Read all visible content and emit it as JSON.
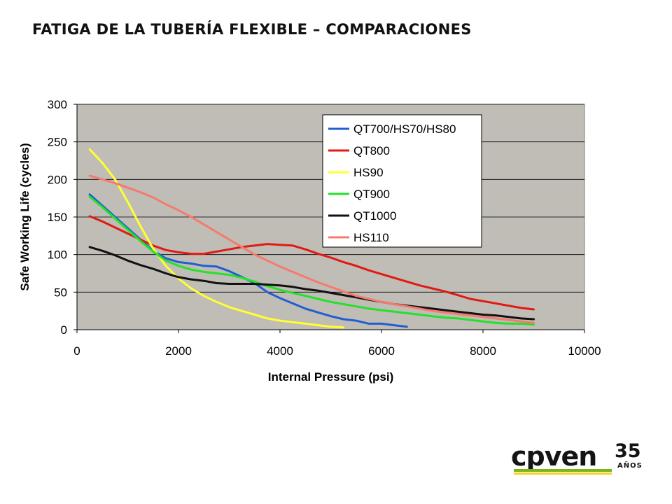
{
  "slide": {
    "title": "FATIGA DE LA TUBERÍA FLEXIBLE – COMPARACIONES"
  },
  "logo": {
    "wordmark": "cpven",
    "number": "35",
    "suffix": "AÑOS",
    "colors": {
      "green": "#7ab51d",
      "yellow": "#f2d21b",
      "dark": "#141414"
    }
  },
  "chart_data": {
    "type": "line",
    "title": "",
    "xlabel": "Internal Pressure (psi)",
    "ylabel": "Safe Working Life (cycles)",
    "xlim": [
      0,
      10000
    ],
    "ylim": [
      0,
      300
    ],
    "xticks": [
      0,
      2000,
      4000,
      6000,
      8000,
      10000
    ],
    "yticks": [
      0,
      50,
      100,
      150,
      200,
      250,
      300
    ],
    "grid": "horizontal",
    "plot_background": "#c0bcb6",
    "legend_position": "top-right",
    "series": [
      {
        "name": "QT700/HS70/HS80",
        "color": "#1f5fd1",
        "points": [
          [
            250,
            180
          ],
          [
            500,
            165
          ],
          [
            750,
            150
          ],
          [
            1000,
            135
          ],
          [
            1250,
            120
          ],
          [
            1500,
            105
          ],
          [
            1750,
            95
          ],
          [
            2000,
            90
          ],
          [
            2250,
            88
          ],
          [
            2500,
            85
          ],
          [
            2750,
            84
          ],
          [
            3000,
            78
          ],
          [
            3250,
            70
          ],
          [
            3500,
            62
          ],
          [
            3750,
            50
          ],
          [
            4000,
            42
          ],
          [
            4250,
            35
          ],
          [
            4500,
            28
          ],
          [
            4750,
            23
          ],
          [
            5000,
            18
          ],
          [
            5250,
            14
          ],
          [
            5500,
            12
          ],
          [
            5750,
            8
          ],
          [
            6000,
            8
          ],
          [
            6250,
            6
          ],
          [
            6500,
            4
          ]
        ]
      },
      {
        "name": "QT800",
        "color": "#e01a12",
        "points": [
          [
            250,
            151
          ],
          [
            500,
            144
          ],
          [
            750,
            136
          ],
          [
            1000,
            128
          ],
          [
            1250,
            120
          ],
          [
            1500,
            112
          ],
          [
            1750,
            106
          ],
          [
            2000,
            103
          ],
          [
            2250,
            101
          ],
          [
            2500,
            101
          ],
          [
            2750,
            104
          ],
          [
            3000,
            107
          ],
          [
            3250,
            110
          ],
          [
            3500,
            112
          ],
          [
            3750,
            114
          ],
          [
            4000,
            113
          ],
          [
            4250,
            112
          ],
          [
            4500,
            107
          ],
          [
            4750,
            101
          ],
          [
            5000,
            96
          ],
          [
            5250,
            90
          ],
          [
            5500,
            85
          ],
          [
            5750,
            79
          ],
          [
            6000,
            74
          ],
          [
            6250,
            69
          ],
          [
            6500,
            64
          ],
          [
            6750,
            59
          ],
          [
            7000,
            55
          ],
          [
            7250,
            51
          ],
          [
            7500,
            46
          ],
          [
            7750,
            41
          ],
          [
            8000,
            38
          ],
          [
            8250,
            35
          ],
          [
            8500,
            32
          ],
          [
            8750,
            29
          ],
          [
            9000,
            27
          ]
        ]
      },
      {
        "name": "HS90",
        "color": "#ffff33",
        "points": [
          [
            250,
            240
          ],
          [
            500,
            222
          ],
          [
            750,
            200
          ],
          [
            1000,
            170
          ],
          [
            1250,
            138
          ],
          [
            1500,
            108
          ],
          [
            1750,
            85
          ],
          [
            2000,
            68
          ],
          [
            2250,
            55
          ],
          [
            2500,
            45
          ],
          [
            2750,
            37
          ],
          [
            3000,
            30
          ],
          [
            3250,
            25
          ],
          [
            3500,
            20
          ],
          [
            3750,
            15
          ],
          [
            4000,
            12
          ],
          [
            4250,
            10
          ],
          [
            4500,
            8
          ],
          [
            4750,
            6
          ],
          [
            5000,
            4
          ],
          [
            5250,
            3
          ]
        ]
      },
      {
        "name": "QT900",
        "color": "#22e22a",
        "points": [
          [
            250,
            177
          ],
          [
            500,
            163
          ],
          [
            750,
            148
          ],
          [
            1000,
            133
          ],
          [
            1250,
            118
          ],
          [
            1500,
            104
          ],
          [
            1750,
            92
          ],
          [
            2000,
            85
          ],
          [
            2250,
            80
          ],
          [
            2500,
            77
          ],
          [
            2750,
            75
          ],
          [
            3000,
            73
          ],
          [
            3250,
            69
          ],
          [
            3500,
            64
          ],
          [
            3750,
            58
          ],
          [
            4000,
            53
          ],
          [
            4250,
            49
          ],
          [
            4500,
            45
          ],
          [
            4750,
            41
          ],
          [
            5000,
            37
          ],
          [
            5250,
            34
          ],
          [
            5500,
            31
          ],
          [
            5750,
            28
          ],
          [
            6000,
            26
          ],
          [
            6250,
            24
          ],
          [
            6500,
            22
          ],
          [
            6750,
            20
          ],
          [
            7000,
            18
          ],
          [
            7250,
            16
          ],
          [
            7500,
            15
          ],
          [
            7750,
            13
          ],
          [
            8000,
            11
          ],
          [
            8250,
            9
          ],
          [
            8500,
            8
          ],
          [
            8750,
            8
          ],
          [
            9000,
            7
          ]
        ]
      },
      {
        "name": "QT1000",
        "color": "#111111",
        "points": [
          [
            250,
            110
          ],
          [
            500,
            105
          ],
          [
            750,
            99
          ],
          [
            1000,
            92
          ],
          [
            1250,
            86
          ],
          [
            1500,
            81
          ],
          [
            1750,
            75
          ],
          [
            2000,
            70
          ],
          [
            2250,
            67
          ],
          [
            2500,
            65
          ],
          [
            2750,
            62
          ],
          [
            3000,
            61
          ],
          [
            3250,
            61
          ],
          [
            3500,
            61
          ],
          [
            3750,
            60
          ],
          [
            4000,
            59
          ],
          [
            4250,
            57
          ],
          [
            4500,
            54
          ],
          [
            4750,
            52
          ],
          [
            5000,
            49
          ],
          [
            5250,
            46
          ],
          [
            5500,
            43
          ],
          [
            5750,
            40
          ],
          [
            6000,
            37
          ],
          [
            6250,
            34
          ],
          [
            6500,
            32
          ],
          [
            6750,
            30
          ],
          [
            7000,
            28
          ],
          [
            7250,
            26
          ],
          [
            7500,
            24
          ],
          [
            7750,
            22
          ],
          [
            8000,
            20
          ],
          [
            8250,
            19
          ],
          [
            8500,
            17
          ],
          [
            8750,
            15
          ],
          [
            9000,
            14
          ]
        ]
      },
      {
        "name": "HS110",
        "color": "#f47b6e",
        "points": [
          [
            250,
            205
          ],
          [
            500,
            200
          ],
          [
            750,
            195
          ],
          [
            1000,
            189
          ],
          [
            1250,
            183
          ],
          [
            1500,
            176
          ],
          [
            1750,
            167
          ],
          [
            2000,
            159
          ],
          [
            2250,
            150
          ],
          [
            2500,
            140
          ],
          [
            2750,
            130
          ],
          [
            3000,
            120
          ],
          [
            3250,
            110
          ],
          [
            3500,
            100
          ],
          [
            3750,
            92
          ],
          [
            4000,
            84
          ],
          [
            4250,
            77
          ],
          [
            4500,
            70
          ],
          [
            4750,
            63
          ],
          [
            5000,
            57
          ],
          [
            5250,
            51
          ],
          [
            5500,
            45
          ],
          [
            5750,
            41
          ],
          [
            6000,
            37
          ],
          [
            6250,
            34
          ],
          [
            6500,
            31
          ],
          [
            6750,
            28
          ],
          [
            7000,
            25
          ],
          [
            7250,
            23
          ],
          [
            7500,
            21
          ],
          [
            7750,
            19
          ],
          [
            8000,
            17
          ],
          [
            8250,
            15
          ],
          [
            8500,
            13
          ],
          [
            8750,
            11
          ],
          [
            9000,
            9
          ]
        ]
      }
    ]
  }
}
